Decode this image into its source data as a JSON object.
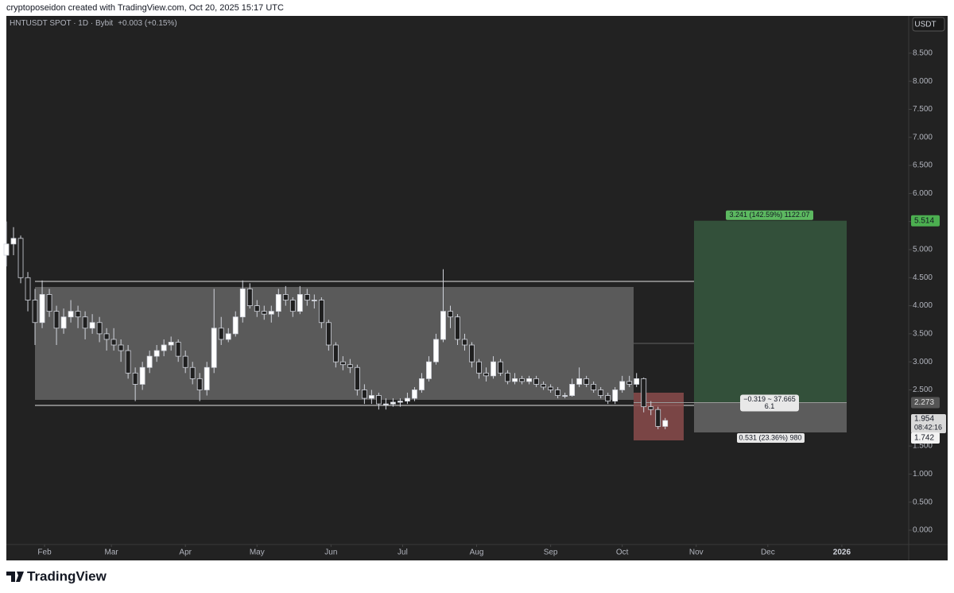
{
  "header": {
    "byline": "cryptoposeidon created with TradingView.com, Oct 20, 2025 15:17 UTC",
    "symbol": "HNTUSDT SPOT · 1D · Bybit",
    "change": "+0.003 (+0.15%)",
    "currency": "USDT"
  },
  "chart_data": {
    "type": "candlestick",
    "x": [
      16,
      19,
      22,
      25,
      28,
      31,
      34,
      37,
      40,
      43,
      46,
      49,
      52,
      55,
      58,
      61,
      64,
      67,
      70,
      73,
      76,
      79,
      82,
      85,
      88,
      91,
      94,
      97,
      100,
      103,
      106,
      109,
      112,
      115,
      118,
      121,
      124,
      127,
      130,
      133,
      136,
      139,
      142,
      145,
      148,
      151,
      154,
      157,
      160,
      163,
      166,
      169,
      172,
      175,
      178,
      181,
      184,
      187,
      190,
      193,
      196,
      199,
      202,
      205,
      208,
      211,
      214,
      217,
      220,
      223,
      226,
      229,
      232,
      235,
      238,
      241,
      244,
      247,
      250,
      253,
      256,
      259,
      262,
      265,
      268,
      271,
      274,
      277,
      280,
      283,
      286,
      289,
      292
    ],
    "ohlc": [
      [
        4.9,
        5.5,
        4.7,
        5.1
      ],
      [
        5.1,
        5.4,
        4.9,
        5.2
      ],
      [
        5.2,
        5.25,
        4.4,
        4.5
      ],
      [
        4.5,
        4.6,
        3.9,
        4.1
      ],
      [
        4.1,
        4.3,
        3.3,
        3.7
      ],
      [
        3.7,
        4.45,
        3.6,
        4.2
      ],
      [
        4.2,
        4.3,
        3.8,
        3.9
      ],
      [
        3.9,
        4.0,
        3.3,
        3.6
      ],
      [
        3.6,
        3.95,
        3.5,
        3.8
      ],
      [
        3.8,
        4.1,
        3.7,
        3.9
      ],
      [
        3.9,
        4.0,
        3.6,
        3.8
      ],
      [
        3.8,
        3.9,
        3.4,
        3.6
      ],
      [
        3.6,
        3.85,
        3.5,
        3.7
      ],
      [
        3.7,
        3.8,
        3.35,
        3.5
      ],
      [
        3.5,
        3.6,
        3.2,
        3.4
      ],
      [
        3.4,
        3.6,
        3.2,
        3.3
      ],
      [
        3.3,
        3.4,
        3.0,
        3.2
      ],
      [
        3.2,
        3.3,
        2.7,
        2.8
      ],
      [
        2.8,
        2.9,
        2.3,
        2.6
      ],
      [
        2.6,
        3.0,
        2.5,
        2.9
      ],
      [
        2.9,
        3.2,
        2.8,
        3.1
      ],
      [
        3.1,
        3.3,
        3.0,
        3.2
      ],
      [
        3.2,
        3.4,
        3.1,
        3.3
      ],
      [
        3.3,
        3.45,
        3.2,
        3.35
      ],
      [
        3.35,
        3.4,
        3.0,
        3.1
      ],
      [
        3.1,
        3.2,
        2.8,
        2.9
      ],
      [
        2.9,
        3.0,
        2.6,
        2.7
      ],
      [
        2.7,
        2.8,
        2.3,
        2.5
      ],
      [
        2.5,
        3.0,
        2.4,
        2.9
      ],
      [
        2.9,
        4.3,
        2.8,
        3.6
      ],
      [
        3.6,
        3.8,
        3.3,
        3.4
      ],
      [
        3.4,
        3.6,
        3.35,
        3.5
      ],
      [
        3.5,
        3.9,
        3.45,
        3.8
      ],
      [
        3.8,
        4.45,
        3.7,
        4.3
      ],
      [
        4.3,
        4.4,
        3.95,
        4.0
      ],
      [
        4.0,
        4.1,
        3.8,
        3.9
      ],
      [
        3.9,
        4.0,
        3.75,
        3.85
      ],
      [
        3.85,
        4.0,
        3.7,
        3.9
      ],
      [
        3.9,
        4.3,
        3.8,
        4.2
      ],
      [
        4.2,
        4.35,
        4.0,
        4.1
      ],
      [
        4.1,
        4.15,
        3.8,
        3.9
      ],
      [
        3.9,
        4.35,
        3.85,
        4.2
      ],
      [
        4.2,
        4.3,
        4.0,
        4.1
      ],
      [
        4.1,
        4.2,
        3.95,
        4.1
      ],
      [
        4.1,
        4.15,
        3.6,
        3.7
      ],
      [
        3.7,
        3.75,
        3.2,
        3.3
      ],
      [
        3.3,
        3.35,
        2.9,
        3.0
      ],
      [
        3.0,
        3.1,
        2.85,
        2.95
      ],
      [
        2.95,
        3.05,
        2.8,
        2.9
      ],
      [
        2.9,
        2.95,
        2.4,
        2.5
      ],
      [
        2.5,
        2.6,
        2.25,
        2.35
      ],
      [
        2.35,
        2.5,
        2.25,
        2.4
      ],
      [
        2.4,
        2.45,
        2.15,
        2.25
      ],
      [
        2.25,
        2.35,
        2.15,
        2.25
      ],
      [
        2.25,
        2.35,
        2.2,
        2.28
      ],
      [
        2.28,
        2.35,
        2.2,
        2.3
      ],
      [
        2.3,
        2.45,
        2.25,
        2.35
      ],
      [
        2.35,
        2.55,
        2.3,
        2.5
      ],
      [
        2.5,
        2.8,
        2.45,
        2.7
      ],
      [
        2.7,
        3.1,
        2.65,
        3.0
      ],
      [
        3.0,
        3.5,
        2.95,
        3.4
      ],
      [
        3.4,
        4.65,
        3.35,
        3.9
      ],
      [
        3.9,
        4.0,
        3.6,
        3.8
      ],
      [
        3.8,
        3.85,
        3.3,
        3.4
      ],
      [
        3.4,
        3.5,
        3.2,
        3.3
      ],
      [
        3.3,
        3.35,
        2.9,
        3.0
      ],
      [
        3.0,
        3.05,
        2.7,
        2.8
      ],
      [
        2.8,
        2.9,
        2.65,
        2.75
      ],
      [
        2.75,
        3.1,
        2.7,
        3.0
      ],
      [
        3.0,
        3.05,
        2.75,
        2.8
      ],
      [
        2.8,
        2.85,
        2.6,
        2.65
      ],
      [
        2.65,
        2.8,
        2.6,
        2.7
      ],
      [
        2.7,
        2.75,
        2.6,
        2.65
      ],
      [
        2.65,
        2.75,
        2.6,
        2.7
      ],
      [
        2.7,
        2.75,
        2.55,
        2.6
      ],
      [
        2.6,
        2.65,
        2.5,
        2.55
      ],
      [
        2.55,
        2.6,
        2.45,
        2.5
      ],
      [
        2.5,
        2.55,
        2.35,
        2.4
      ],
      [
        2.4,
        2.45,
        2.35,
        2.4
      ],
      [
        2.4,
        2.7,
        2.38,
        2.6
      ],
      [
        2.6,
        2.9,
        2.55,
        2.7
      ],
      [
        2.7,
        2.75,
        2.55,
        2.6
      ],
      [
        2.6,
        2.65,
        2.45,
        2.5
      ],
      [
        2.5,
        2.55,
        2.35,
        2.4
      ],
      [
        2.4,
        2.45,
        2.25,
        2.3
      ],
      [
        2.3,
        2.55,
        2.25,
        2.5
      ],
      [
        2.5,
        2.75,
        2.45,
        2.65
      ],
      [
        2.65,
        2.75,
        2.55,
        2.6
      ],
      [
        2.6,
        2.8,
        2.55,
        2.7
      ],
      [
        2.7,
        2.72,
        2.1,
        2.2
      ],
      [
        2.2,
        2.3,
        2.05,
        2.15
      ],
      [
        2.15,
        2.2,
        1.8,
        1.85
      ],
      [
        1.85,
        2.0,
        1.8,
        1.954
      ]
    ],
    "up_color": "#ffffff",
    "down_color": "#1f1f1f",
    "wick_color": "#d1d4dc",
    "xlim": [
      16,
      394
    ],
    "xticks": [
      {
        "value": 32,
        "label": "Feb"
      },
      {
        "value": 60,
        "label": "Mar"
      },
      {
        "value": 91,
        "label": "Apr"
      },
      {
        "value": 121,
        "label": "May"
      },
      {
        "value": 152,
        "label": "Jun"
      },
      {
        "value": 182,
        "label": "Jul"
      },
      {
        "value": 213,
        "label": "Aug"
      },
      {
        "value": 244,
        "label": "Sep"
      },
      {
        "value": 274,
        "label": "Oct"
      },
      {
        "value": 305,
        "label": "Nov"
      },
      {
        "value": 335,
        "label": "Dec"
      },
      {
        "value": 366,
        "label": "2026"
      }
    ],
    "ylim": [
      -0.255,
      9.164
    ],
    "yticks": [
      {
        "value": 0,
        "label": "0.000"
      },
      {
        "value": 0.5,
        "label": "0.500"
      },
      {
        "value": 1,
        "label": "1.000"
      },
      {
        "value": 1.5,
        "label": "1.500"
      },
      {
        "value": 2.5,
        "label": "2.500"
      },
      {
        "value": 3,
        "label": "3.000"
      },
      {
        "value": 3.5,
        "label": "3.500"
      },
      {
        "value": 4,
        "label": "4.000"
      },
      {
        "value": 4.5,
        "label": "4.500"
      },
      {
        "value": 5,
        "label": "5.000"
      },
      {
        "value": 5.5,
        "label": "5.500"
      },
      {
        "value": 6,
        "label": "6.000"
      },
      {
        "value": 6.5,
        "label": "6.500"
      },
      {
        "value": 7,
        "label": "7.000"
      },
      {
        "value": 7.5,
        "label": "7.500"
      },
      {
        "value": 8,
        "label": "8.000"
      },
      {
        "value": 8.5,
        "label": "8.500"
      }
    ],
    "levels": {
      "target": 5.514,
      "entry": 2.273,
      "stop": 1.742,
      "last": 1.954
    },
    "countdown": "08:42:16",
    "annotations": {
      "target": "3.241 (142.59%) 1122.07",
      "entry_top": "−0.319 ~ 37.665",
      "entry_bottom": "6.1",
      "stop": "0.531 (23.36%) 980"
    }
  },
  "footer": {
    "brand": "TradingView"
  }
}
